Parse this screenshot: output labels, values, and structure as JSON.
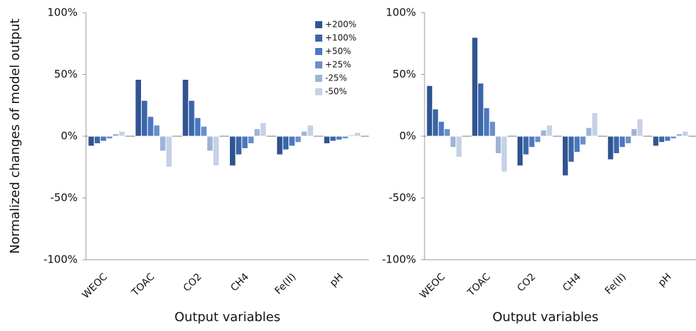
{
  "chart_data": [
    {
      "type": "bar",
      "ylabel": "Normalized changes of model output",
      "xlabel": "Output variables",
      "categories": [
        "WEOC",
        "TOAC",
        "CO2",
        "CH4",
        "Fe(II)",
        "pH"
      ],
      "ylim": [
        -100,
        100
      ],
      "yticks": [
        {
          "value": -100,
          "label": "-100%"
        },
        {
          "value": -50,
          "label": "-50%"
        },
        {
          "value": 0,
          "label": "0%"
        },
        {
          "value": 50,
          "label": "50%"
        },
        {
          "value": 100,
          "label": "100%"
        }
      ],
      "legend": "upper right",
      "series": [
        {
          "name": "+200%",
          "color": "#2f5490",
          "values": [
            -8,
            46,
            46,
            -24,
            -15,
            -6
          ]
        },
        {
          "name": "+100%",
          "color": "#3b66a8",
          "values": [
            -6,
            29,
            29,
            -15,
            -11,
            -4
          ]
        },
        {
          "name": "+50%",
          "color": "#4a78c0",
          "values": [
            -4,
            16,
            15,
            -10,
            -8,
            -3
          ]
        },
        {
          "name": "+25%",
          "color": "#6b8fc9",
          "values": [
            -2,
            9,
            8,
            -6,
            -5,
            -2
          ]
        },
        {
          "name": "-25%",
          "color": "#9fb3d6",
          "values": [
            2,
            -12,
            -12,
            6,
            4,
            1
          ]
        },
        {
          "name": "-50%",
          "color": "#c5d1e6",
          "values": [
            4,
            -25,
            -24,
            11,
            9,
            3
          ]
        }
      ]
    },
    {
      "type": "bar",
      "xlabel": "Output variables",
      "categories": [
        "WEOC",
        "TOAC",
        "CO2",
        "CH4",
        "Fe(II)",
        "pH"
      ],
      "ylim": [
        -100,
        100
      ],
      "yticks": [
        {
          "value": -100,
          "label": "-100%"
        },
        {
          "value": -50,
          "label": "-50%"
        },
        {
          "value": 0,
          "label": "0%"
        },
        {
          "value": 50,
          "label": "50%"
        },
        {
          "value": 100,
          "label": "100%"
        }
      ],
      "series": [
        {
          "name": "+200%",
          "color": "#2f5490",
          "values": [
            41,
            80,
            -24,
            -32,
            -19,
            -8
          ]
        },
        {
          "name": "+100%",
          "color": "#3b66a8",
          "values": [
            22,
            43,
            -15,
            -21,
            -14,
            -5
          ]
        },
        {
          "name": "+50%",
          "color": "#4a78c0",
          "values": [
            12,
            23,
            -9,
            -13,
            -9,
            -4
          ]
        },
        {
          "name": "+25%",
          "color": "#6b8fc9",
          "values": [
            6,
            12,
            -5,
            -7,
            -6,
            -2
          ]
        },
        {
          "name": "-25%",
          "color": "#9fb3d6",
          "values": [
            -9,
            -14,
            5,
            7,
            6,
            2
          ]
        },
        {
          "name": "-50%",
          "color": "#c5d1e6",
          "values": [
            -17,
            -29,
            9,
            19,
            14,
            4
          ]
        }
      ]
    }
  ]
}
